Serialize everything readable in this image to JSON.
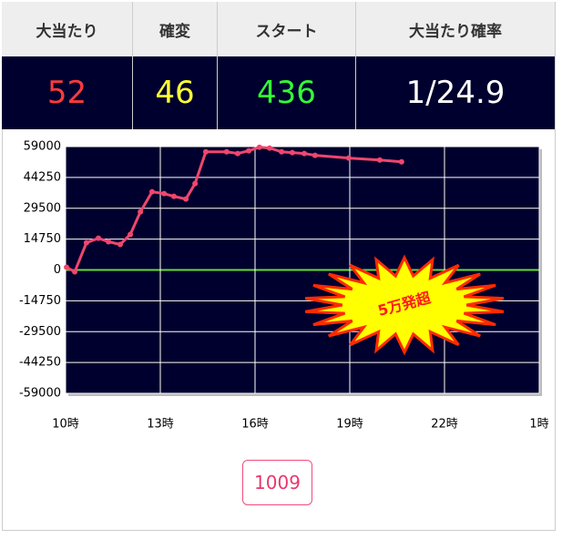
{
  "table": {
    "header": [
      "大当たり",
      "確変",
      "スタート",
      "大当たり確率"
    ],
    "row": [
      "52",
      "46",
      "436",
      "1/24.9"
    ]
  },
  "chart_data": {
    "type": "line",
    "x": [
      10.03,
      10.29,
      10.66,
      11.04,
      11.36,
      11.73,
      12.05,
      12.37,
      12.74,
      13.12,
      13.43,
      13.81,
      14.1,
      14.44,
      15.1,
      15.45,
      15.8,
      16.14,
      16.46,
      16.84,
      17.18,
      17.56,
      17.9,
      18.97,
      19.95,
      20.64
    ],
    "values": [
      1300,
      -870,
      13000,
      15200,
      13500,
      12200,
      17000,
      27800,
      37400,
      36500,
      35200,
      33900,
      41300,
      56500,
      56500,
      55700,
      57000,
      58700,
      58300,
      56500,
      56100,
      55700,
      54800,
      53500,
      52600,
      51700
    ],
    "color": "#f0466e",
    "zero_line_color": "#66dd33",
    "grid": true,
    "ylim": [
      -59000,
      59000
    ],
    "yticks": [
      59000,
      44250,
      29500,
      14750,
      0,
      -14750,
      -29500,
      -44250,
      -59000
    ],
    "xlim": [
      10,
      25
    ],
    "xticks": [
      {
        "value": 10,
        "label": "10時"
      },
      {
        "value": 13,
        "label": "13時"
      },
      {
        "value": 16,
        "label": "16時"
      },
      {
        "value": 19,
        "label": "19時"
      },
      {
        "value": 22,
        "label": "22時"
      },
      {
        "value": 25,
        "label": "1時"
      }
    ],
    "annotation": "5万発超"
  },
  "button": {
    "label": "1009"
  }
}
